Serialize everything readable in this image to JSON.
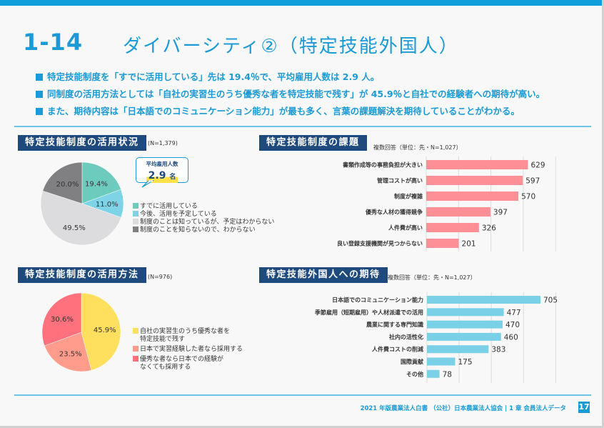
{
  "header": {
    "section_number": "1-14",
    "title": "ダイバーシティ②（特定技能外国人）"
  },
  "summary": [
    "特定技能制度を「すでに活用している」先は 19.4％で、平均雇用人数は 2.9 人。",
    "同制度の活用方法としては「自社の実習生のうち優秀な者を特定技能で残す」が 45.9％と自社での経験者への期待が高い。",
    "また、期待内容は「日本語でのコミュニケーション能力」が最も多く、言葉の課題解決を期待していることがわかる。"
  ],
  "callout": {
    "label": "平均雇用人数",
    "value": "2.9",
    "unit": "名"
  },
  "footer": {
    "text": "2021 年版農業法人白書 （公社）日本農業法人協会 | 1 章 会員法人データ",
    "page_number": "17"
  },
  "colors": {
    "brand": "#1a9ad6",
    "section_title_bg": "#1f4a7d"
  },
  "chart_data": [
    {
      "type": "pie",
      "title": "特定技能制度の活用状況",
      "note": "(N=1,379)",
      "categories": [
        "すでに活用している",
        "今後、活用を予定している",
        "制度のことは知っているが、予定はわからない",
        "制度のことを知らないので、わからない"
      ],
      "values": [
        19.4,
        11.0,
        49.5,
        20.0
      ],
      "labels": [
        "19.4%",
        "11.0%",
        "49.5%",
        "20.0%"
      ],
      "colors": [
        "#6ccbbd",
        "#7fd3e6",
        "#dcdcde",
        "#808083"
      ],
      "legend": "right"
    },
    {
      "type": "bar",
      "orientation": "horizontal",
      "title": "特定技能制度の課題",
      "note": "複数回答（単位：先・N=1,027）",
      "categories": [
        "書類作成等の事務負担が大きい",
        "管理コストが高い",
        "制度が複雑",
        "優秀な人材の獲得競争",
        "人件費が高い",
        "良い登録支援機関が見つからない"
      ],
      "values": [
        629,
        597,
        570,
        397,
        326,
        201
      ],
      "color": "#ff8f96",
      "xlim": [
        0,
        800
      ],
      "grid": true
    },
    {
      "type": "pie",
      "title": "特定技能制度の活用方法",
      "note": "(N=976)",
      "categories": [
        "自社の実習生のうち優秀な者を特定技能で残す",
        "日本で実習経験した者なら採用する",
        "優秀な者なら日本での経験がなくても採用する"
      ],
      "legend_lines": [
        [
          "自社の実習生のうち優秀な者を",
          "特定技能で残す"
        ],
        [
          "日本で実習経験した者なら採用する"
        ],
        [
          "優秀な者なら日本での経験が",
          "なくても採用する"
        ]
      ],
      "values": [
        45.9,
        23.5,
        30.6
      ],
      "labels": [
        "45.9%",
        "23.5%",
        "30.6%"
      ],
      "colors": [
        "#ffdf5e",
        "#ff9c8c",
        "#ff717d"
      ],
      "legend": "right"
    },
    {
      "type": "bar",
      "orientation": "horizontal",
      "title": "特定技能外国人への期待",
      "note": "複数回答（単位：先・N=1,027）",
      "categories": [
        "日本語でのコミュニケーション能力",
        "季節雇用（短期雇用）や人材派遣での活用",
        "農業に関する専門知識",
        "社内の活性化",
        "人件費コストの削減",
        "国際貢献",
        "その他"
      ],
      "values": [
        705,
        477,
        470,
        460,
        383,
        175,
        78
      ],
      "color": "#7ad0e6",
      "xlim": [
        0,
        800
      ],
      "grid": true
    }
  ]
}
